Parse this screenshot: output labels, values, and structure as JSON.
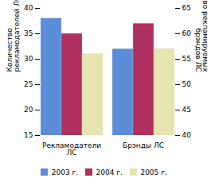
{
  "chart_data": {
    "type": "bar",
    "categories": [
      "Рекламодатели\nЛС",
      "Брэнды ЛС"
    ],
    "series": [
      {
        "name": "2003 г.",
        "color": "#5b8dd9",
        "values": [
          38,
          32
        ]
      },
      {
        "name": "2004 г.",
        "color": "#b03060",
        "values": [
          35,
          37
        ]
      },
      {
        "name": "2005 г.",
        "color": "#e8e4b0",
        "values": [
          31,
          32
        ]
      }
    ],
    "ylim": [
      15,
      40
    ],
    "yticks": [
      15,
      20,
      25,
      30,
      35,
      40
    ],
    "y2lim": [
      40,
      65
    ],
    "y2ticks": [
      40,
      45,
      50,
      55,
      60,
      65
    ],
    "ylabel": "Количество\nрекламодателей ЛС",
    "y2label": "Количество рекламируемых\nбрэндов ЛС",
    "legend": "bottom",
    "grid": false
  }
}
